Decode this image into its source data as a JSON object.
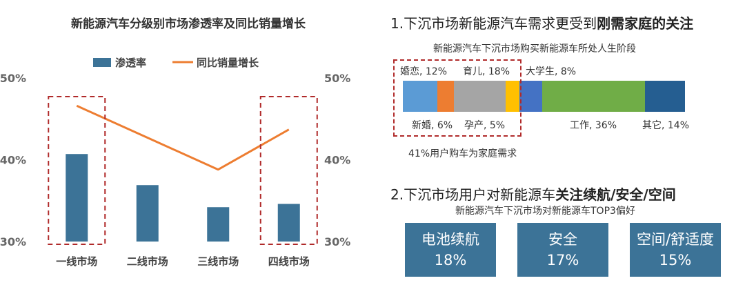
{
  "chart_data": {
    "type": "bar+line",
    "title": "新能源汽车分级别市场渗透率及同比销量增长",
    "legend": [
      "渗透率",
      "同比销量增长"
    ],
    "categories": [
      "一线市场",
      "二线市场",
      "三线市场",
      "四线市场"
    ],
    "series": [
      {
        "name": "渗透率",
        "type": "bar",
        "values": [
          40.7,
          36.9,
          34.2,
          34.6
        ],
        "color": "#3c7397"
      },
      {
        "name": "同比销量增长",
        "type": "line",
        "values": [
          46.6,
          42.7,
          38.8,
          43.7
        ],
        "color": "#ed7d31"
      }
    ],
    "y_left": {
      "min": 30,
      "max": 50,
      "ticks": [
        "30%",
        "40%",
        "50%"
      ]
    },
    "y_right": {
      "min": 30,
      "max": 50,
      "ticks": [
        "30%",
        "40%",
        "50%"
      ]
    },
    "highlight_categories": [
      "一线市场",
      "四线市场"
    ],
    "highlight_color": "#b02a2a"
  },
  "section1": {
    "heading_normal": "1.下沉市场新能源汽车需求更受到",
    "heading_bold": "刚需家庭的关注",
    "caption": "新能源汽车下沉市场购买新能源车所处人生阶段",
    "segments": [
      {
        "name": "婚恋",
        "label": "婚恋, 12%",
        "value": 12,
        "color": "#5b9bd5"
      },
      {
        "name": "新婚",
        "label": "新婚, 6%",
        "value": 6,
        "color": "#ed7d31"
      },
      {
        "name": "育儿",
        "label": "育儿, 18%",
        "value": 18,
        "color": "#a5a5a5"
      },
      {
        "name": "孕产",
        "label": "孕产, 5%",
        "value": 5,
        "color": "#ffc000"
      },
      {
        "name": "大学生",
        "label": "大学生, 8%",
        "value": 8,
        "color": "#4472c4"
      },
      {
        "name": "工作",
        "label": "工作, 36%",
        "value": 36,
        "color": "#70ad47"
      },
      {
        "name": "其它",
        "label": "其它, 14%",
        "value": 14,
        "color": "#255e91"
      }
    ],
    "note": "41%用户购车为家庭需求"
  },
  "section2": {
    "heading_normal": "2.下沉市场用户对新能源车",
    "heading_bold": "关注续航/安全/空间",
    "caption": "新能源汽车下沉市场对新能源车TOP3偏好",
    "prefs": [
      {
        "name": "电池续航",
        "value": "18%"
      },
      {
        "name": "安全",
        "value": "17%"
      },
      {
        "name": "空间/舒适度",
        "value": "15%"
      }
    ]
  }
}
